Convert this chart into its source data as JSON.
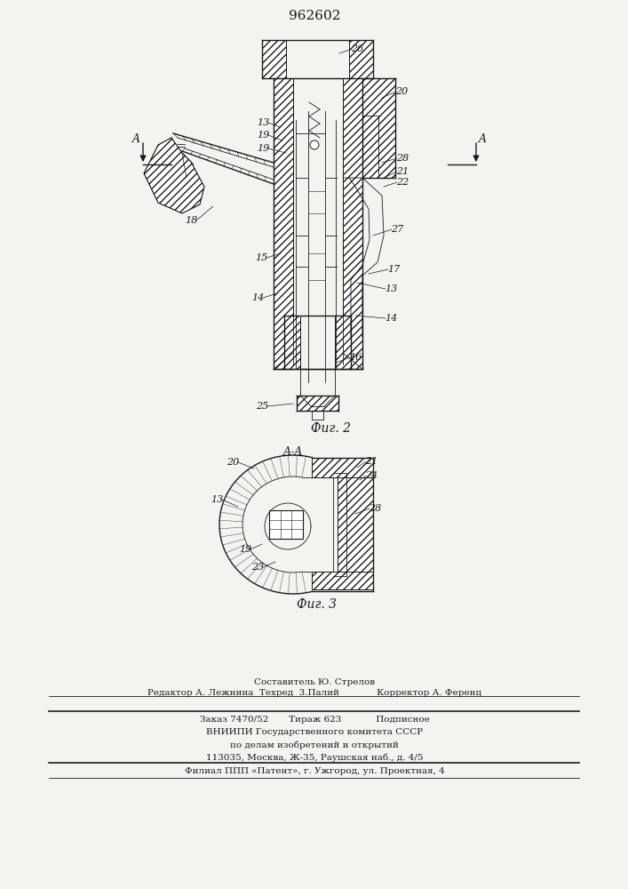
{
  "title": "962602",
  "fig2_caption": "Фиг. 2",
  "fig3_caption": "Фиг. 3",
  "fig3_label": "A-A",
  "bg_color": "#f5f3f0",
  "line_color": "#1a1a1a",
  "footer_line1": "Составитель Ю. Стрелов",
  "footer_line2": "Редактор А. Лежнина  Техред  3.Палий             Корректор А. Ференц",
  "footer_line3": "Заказ 7470/52       Тираж 623            Подписное",
  "footer_line4": "ВНИИПИ Государственного комитета СССР",
  "footer_line5": "по делам изобретений и открытий",
  "footer_line6": "113035, Москва, Ж-35, Раушская наб., д. 4/5",
  "footer_line7": "Филиал ППП «Патент», г. Ужгород, ул. Проектная, 4"
}
